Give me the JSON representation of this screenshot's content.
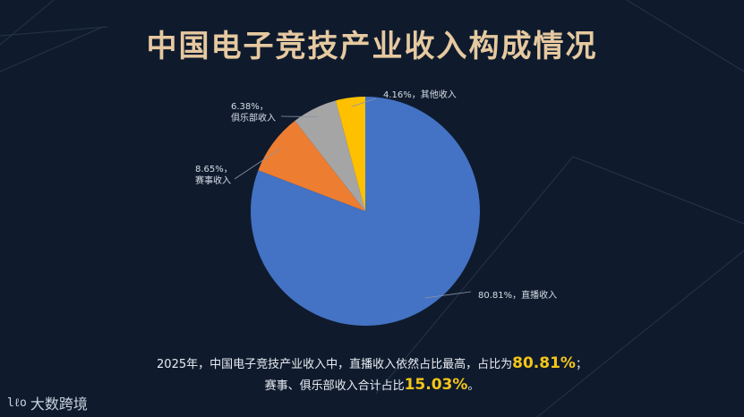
{
  "page": {
    "title": "中国电子竞技产业收入构成情况"
  },
  "chart_data": {
    "type": "pie",
    "title": "中国电子竞技产业收入构成情况",
    "slices": [
      {
        "name": "直播收入",
        "value": 80.81,
        "label": "80.81%，直播收入",
        "color": "#4472c4"
      },
      {
        "name": "赛事收入",
        "value": 8.65,
        "label_pct": "8.65%，",
        "label_name": "赛事收入",
        "color": "#ed7d31"
      },
      {
        "name": "俱乐部收入",
        "value": 6.38,
        "label_pct": "6.38%，",
        "label_name": "俱乐部收入",
        "color": "#a5a5a5"
      },
      {
        "name": "其他收入",
        "value": 4.16,
        "label": "4.16%，其他收入",
        "color": "#ffc000"
      }
    ]
  },
  "footer": {
    "line1_text": "2025年，中国电子竞技产业收入中，直播收入依然占比最高，占比为",
    "line1_highlight": "80.81%",
    "line1_end": "；",
    "line2_text": "赛事、俱乐部收入合计占比",
    "line2_highlight": "15.03%",
    "line2_end": "。"
  },
  "logo": {
    "mark": "lℓo",
    "text": "大数跨境"
  },
  "colors": {
    "background": "#0f1b2d",
    "title": "#e6c9a0",
    "highlight": "#f5c518"
  }
}
